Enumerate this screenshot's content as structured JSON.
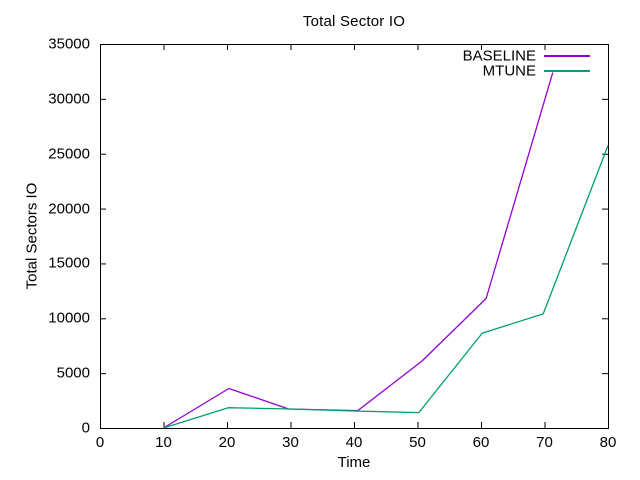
{
  "window": {
    "background": "#ffffff",
    "foreground": "#000000"
  },
  "chart_data": {
    "type": "line",
    "title": "Total Sector IO",
    "xlabel": "Time",
    "ylabel": "Total Sectors IO",
    "xlim": [
      0,
      80
    ],
    "ylim": [
      0,
      35000
    ],
    "xticks": [
      0,
      10,
      20,
      30,
      40,
      50,
      60,
      70,
      80
    ],
    "yticks": [
      0,
      5000,
      10000,
      15000,
      20000,
      25000,
      30000,
      35000
    ],
    "grid": false,
    "border": true,
    "tick_style": "inward-mirrored",
    "legend_position": "top-right-inside",
    "series": [
      {
        "name": "BASELINE",
        "color": "#9400d3",
        "points": [
          [
            10,
            0
          ],
          [
            20.3,
            3600
          ],
          [
            29.7,
            1730
          ],
          [
            40.6,
            1590
          ],
          [
            50.7,
            6100
          ],
          [
            60.8,
            11800
          ],
          [
            71.3,
            32400
          ]
        ]
      },
      {
        "name": "MTUNE",
        "color": "#009e73",
        "points": [
          [
            10,
            0
          ],
          [
            20.2,
            1850
          ],
          [
            30,
            1730
          ],
          [
            40,
            1550
          ],
          [
            50.2,
            1400
          ],
          [
            60.2,
            8650
          ],
          [
            69.8,
            10400
          ],
          [
            80,
            25750
          ]
        ]
      }
    ]
  }
}
